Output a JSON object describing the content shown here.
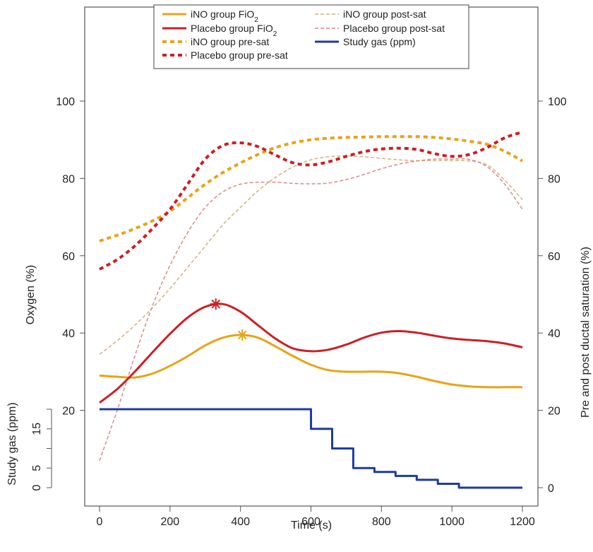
{
  "chart_data": {
    "type": "line",
    "xlabel": "Time (s)",
    "ylabel_left": "Oxygen (%)",
    "ylabel_right": "Pre and post ductal saturation (%)",
    "ylabel_gas": "Study gas (ppm)",
    "xlim": [
      0,
      1200
    ],
    "ylim": [
      0,
      100
    ],
    "x_ticks": [
      0,
      200,
      400,
      600,
      800,
      1000,
      1200
    ],
    "y_ticks": [
      0,
      20,
      40,
      60,
      80,
      100
    ],
    "gas_ticks": [
      0,
      5,
      10,
      15,
      20
    ],
    "gas_tick_labels": [
      "0",
      "5",
      "",
      "15",
      ""
    ],
    "gas_ylim": [
      0,
      20
    ],
    "legend": {
      "placement": "top",
      "items": [
        {
          "label": "iNO group FiO",
          "sub": "2",
          "color": "#e8a317",
          "style": "solid",
          "width": 3
        },
        {
          "label": "Placebo group FiO",
          "sub": "2",
          "color": "#cc1f24",
          "style": "solid",
          "width": 3
        },
        {
          "label": "iNO group pre-sat",
          "sub": "",
          "color": "#e8a317",
          "style": "dotted",
          "width": 4
        },
        {
          "label": "Placebo group pre-sat",
          "sub": "",
          "color": "#cc1f24",
          "style": "dotted",
          "width": 4
        },
        {
          "label": "iNO group post-sat",
          "sub": "",
          "color": "#d7b07a",
          "style": "dashed",
          "width": 1.5
        },
        {
          "label": "Placebo group post-sat",
          "sub": "",
          "color": "#d98a8a",
          "style": "dashed",
          "width": 1.5
        },
        {
          "label": "Study gas (ppm)",
          "sub": "",
          "color": "#1f3b9e",
          "style": "solid",
          "width": 3
        }
      ]
    },
    "series": [
      {
        "name": "iNO group FiO2",
        "key": "ino_fio2",
        "color": "#e8a317",
        "style": "solid",
        "width": 3,
        "x": [
          0,
          50,
          100,
          150,
          200,
          250,
          300,
          350,
          400,
          450,
          500,
          550,
          600,
          650,
          700,
          750,
          800,
          850,
          900,
          950,
          1000,
          1050,
          1100,
          1150,
          1200
        ],
        "y": [
          29,
          28.7,
          28.5,
          29.5,
          31.5,
          34,
          36.8,
          38.8,
          39.5,
          38.8,
          36.5,
          34,
          31.8,
          30.4,
          30,
          30,
          30,
          29.6,
          28.7,
          27.6,
          26.7,
          26.2,
          26,
          26,
          26
        ]
      },
      {
        "name": "Placebo group FiO2",
        "key": "pl_fio2",
        "color": "#cc1f24",
        "style": "solid",
        "width": 3,
        "x": [
          0,
          50,
          100,
          150,
          200,
          250,
          300,
          350,
          400,
          450,
          500,
          550,
          600,
          650,
          700,
          750,
          800,
          850,
          900,
          950,
          1000,
          1050,
          1100,
          1150,
          1200
        ],
        "y": [
          22,
          25.5,
          30,
          35,
          39.8,
          44,
          46.8,
          47.5,
          45.5,
          42,
          38.5,
          36,
          35.3,
          35.7,
          37,
          38.8,
          40.1,
          40.5,
          40.1,
          39.3,
          38.6,
          38.2,
          37.9,
          37.3,
          36.3
        ]
      },
      {
        "name": "iNO group pre-sat",
        "key": "ino_pre",
        "color": "#e8a317",
        "style": "dotted",
        "width": 4,
        "x": [
          0,
          50,
          100,
          150,
          200,
          250,
          300,
          350,
          400,
          450,
          500,
          550,
          600,
          650,
          700,
          750,
          800,
          850,
          900,
          950,
          1000,
          1050,
          1100,
          1150,
          1200
        ],
        "y": [
          63.8,
          65.3,
          67,
          69,
          71.5,
          75,
          78.5,
          81.5,
          84,
          86.2,
          88,
          89.2,
          90,
          90.4,
          90.6,
          90.7,
          90.8,
          90.8,
          90.8,
          90.6,
          90.2,
          89.6,
          88.8,
          87,
          84.5
        ]
      },
      {
        "name": "Placebo group pre-sat",
        "key": "pl_pre",
        "color": "#cc1f24",
        "style": "dotted",
        "width": 4,
        "x": [
          0,
          50,
          100,
          150,
          200,
          250,
          300,
          350,
          400,
          450,
          500,
          550,
          600,
          650,
          700,
          750,
          800,
          850,
          900,
          950,
          1000,
          1050,
          1100,
          1150,
          1200
        ],
        "y": [
          56.5,
          59,
          62.5,
          67,
          72,
          78.5,
          85,
          88.5,
          89.2,
          88.2,
          86,
          84,
          83.5,
          84.3,
          85.7,
          86.9,
          87.6,
          87.8,
          87.5,
          86.4,
          85.7,
          86.2,
          88,
          90.5,
          92
        ]
      },
      {
        "name": "iNO group post-sat",
        "key": "ino_post",
        "color": "#d7b07a",
        "style": "dashed",
        "width": 1.5,
        "x": [
          0,
          50,
          100,
          150,
          200,
          250,
          300,
          350,
          400,
          450,
          500,
          550,
          600,
          650,
          700,
          750,
          800,
          850,
          900,
          950,
          1000,
          1050,
          1100,
          1150,
          1200
        ],
        "y": [
          34.5,
          38,
          42,
          46.5,
          51.5,
          57,
          62.5,
          68,
          72.5,
          76.8,
          80.3,
          83,
          84.8,
          85.6,
          85.8,
          85.6,
          85.2,
          84.8,
          84.6,
          84.6,
          84.6,
          84.5,
          83.5,
          79.5,
          74.5
        ]
      },
      {
        "name": "Placebo group post-sat",
        "key": "pl_post",
        "color": "#d98a8a",
        "style": "dashed",
        "width": 1.5,
        "x": [
          0,
          50,
          100,
          150,
          200,
          250,
          300,
          350,
          400,
          450,
          500,
          550,
          600,
          650,
          700,
          750,
          800,
          850,
          900,
          950,
          1000,
          1050,
          1100,
          1150,
          1200
        ],
        "y": [
          7,
          20,
          34,
          47,
          57.5,
          66,
          72.5,
          76.5,
          78.5,
          79,
          79,
          78.7,
          78.6,
          78.8,
          79.7,
          81,
          82.5,
          83.7,
          84.5,
          85,
          85,
          84.9,
          83,
          78.5,
          72
        ]
      },
      {
        "name": "Study gas (ppm)",
        "key": "gas",
        "color": "#1f3b9e",
        "style": "step",
        "width": 3,
        "x": [
          0,
          600,
          660,
          720,
          780,
          840,
          900,
          960,
          1020,
          1200
        ],
        "y": [
          20,
          15,
          10,
          5,
          4,
          3,
          2,
          1,
          0,
          0
        ]
      }
    ],
    "peak_markers": [
      {
        "series": "Placebo group FiO2",
        "x": 330,
        "y": 47.5,
        "color": "#cc1f24",
        "symbol": "*"
      },
      {
        "series": "iNO group FiO2",
        "x": 405,
        "y": 39.5,
        "color": "#e8a317",
        "symbol": "*"
      }
    ],
    "grid": false
  }
}
